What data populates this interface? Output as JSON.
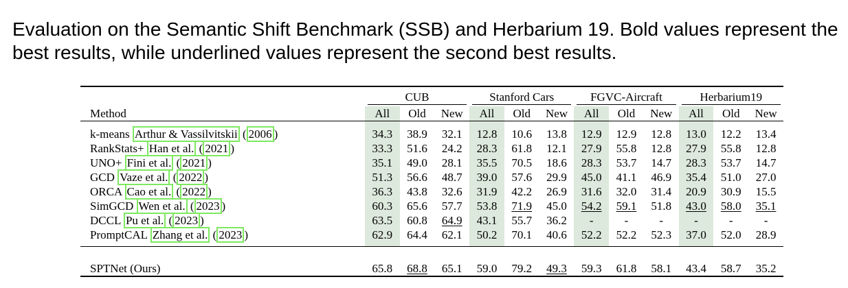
{
  "caption": "Evaluation on the Semantic Shift Benchmark (SSB) and Herbarium 19. Bold values represent the best results, while underlined values represent the second best results.",
  "table": {
    "method_header": "Method",
    "groups": [
      "CUB",
      "Stanford Cars",
      "FGVC-Aircraft",
      "Herbarium19"
    ],
    "subheaders": [
      "All",
      "Old",
      "New"
    ],
    "rows": [
      {
        "name": "k-means",
        "cite_a": "Arthur & Vassilvitskii",
        "cite_b": "2006",
        "values": [
          "34.3",
          "38.9",
          "32.1",
          "12.8",
          "10.6",
          "13.8",
          "12.9",
          "12.9",
          "12.8",
          "13.0",
          "12.2",
          "13.4"
        ],
        "underline": []
      },
      {
        "name": "RankStats+",
        "cite_a": "Han et al.",
        "cite_b": "2021",
        "values": [
          "33.3",
          "51.6",
          "24.2",
          "28.3",
          "61.8",
          "12.1",
          "27.9",
          "55.8",
          "12.8",
          "27.9",
          "55.8",
          "12.8"
        ],
        "underline": []
      },
      {
        "name": "UNO+",
        "cite_a": "Fini et al.",
        "cite_b": "2021",
        "values": [
          "35.1",
          "49.0",
          "28.1",
          "35.5",
          "70.5",
          "18.6",
          "28.3",
          "53.7",
          "14.7",
          "28.3",
          "53.7",
          "14.7"
        ],
        "underline": []
      },
      {
        "name": "GCD",
        "cite_a": "Vaze et al.",
        "cite_b": "2022",
        "values": [
          "51.3",
          "56.6",
          "48.7",
          "39.0",
          "57.6",
          "29.9",
          "45.0",
          "41.1",
          "46.9",
          "35.4",
          "51.0",
          "27.0"
        ],
        "underline": []
      },
      {
        "name": "ORCA",
        "cite_a": "Cao et al.",
        "cite_b": "2022",
        "values": [
          "36.3",
          "43.8",
          "32.6",
          "31.9",
          "42.2",
          "26.9",
          "31.6",
          "32.0",
          "31.4",
          "20.9",
          "30.9",
          "15.5"
        ],
        "underline": []
      },
      {
        "name": "SimGCD",
        "cite_a": "Wen et al.",
        "cite_b": "2023",
        "values": [
          "60.3",
          "65.6",
          "57.7",
          "53.8",
          "71.9",
          "45.0",
          "54.2",
          "59.1",
          "51.8",
          "43.0",
          "58.0",
          "35.1"
        ],
        "underline": [
          4,
          6,
          7,
          9,
          10,
          11
        ]
      },
      {
        "name": "DCCL",
        "cite_a": "Pu et al.",
        "cite_b": "2023",
        "values": [
          "63.5",
          "60.8",
          "64.9",
          "43.1",
          "55.7",
          "36.2",
          "-",
          "-",
          "-",
          "-",
          "-",
          "-"
        ],
        "underline": [
          2
        ]
      },
      {
        "name": "PromptCAL",
        "cite_a": "Zhang et al.",
        "cite_b": "2023",
        "values": [
          "62.9",
          "64.4",
          "62.1",
          "50.2",
          "70.1",
          "40.6",
          "52.2",
          "52.2",
          "52.3",
          "37.0",
          "52.0",
          "28.9"
        ],
        "underline": []
      }
    ],
    "ours": {
      "name": "SPTNet (Ours)",
      "values": [
        "65.8",
        "68.8",
        "65.1",
        "59.0",
        "79.2",
        "49.3",
        "59.3",
        "61.8",
        "58.1",
        "43.4",
        "58.7",
        "35.2"
      ],
      "underline": [
        1,
        5
      ]
    }
  }
}
